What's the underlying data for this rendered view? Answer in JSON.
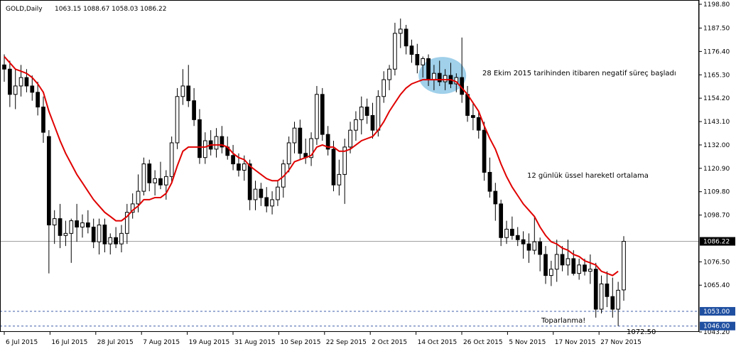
{
  "header": {
    "symbol": "GOLD,Daily",
    "ohlc": "1063.15 1088.67 1058.03 1086.22"
  },
  "chart_data": {
    "type": "candlestick",
    "symbol": "GOLD",
    "timeframe": "Daily",
    "ylim": [
      1043.2,
      1198.8
    ],
    "y_ticks": [
      "1198.80",
      "1187.50",
      "1176.40",
      "1165.30",
      "1154.20",
      "1143.10",
      "1132.00",
      "1120.90",
      "1109.80",
      "1098.70",
      "1076.50",
      "1065.40",
      "1043.20"
    ],
    "x_ticks": [
      "6 Jul 2015",
      "16 Jul 2015",
      "28 Jul 2015",
      "7 Aug 2015",
      "19 Aug 2015",
      "31 Aug 2015",
      "10 Sep 2015",
      "22 Sep 2015",
      "2 Oct 2015",
      "14 Oct 2015",
      "26 Oct 2015",
      "5 Nov 2015",
      "17 Nov 2015",
      "27 Nov 2015"
    ],
    "candles": [
      {
        "o": 1170.0,
        "h": 1175.0,
        "l": 1162.0,
        "c": 1168.0
      },
      {
        "o": 1168.0,
        "h": 1172.0,
        "l": 1150.0,
        "c": 1156.0
      },
      {
        "o": 1156.0,
        "h": 1168.0,
        "l": 1149.0,
        "c": 1160.0
      },
      {
        "o": 1160.0,
        "h": 1170.0,
        "l": 1155.0,
        "c": 1164.0
      },
      {
        "o": 1164.0,
        "h": 1168.0,
        "l": 1157.0,
        "c": 1160.0
      },
      {
        "o": 1160.0,
        "h": 1165.0,
        "l": 1153.0,
        "c": 1157.0
      },
      {
        "o": 1157.0,
        "h": 1162.0,
        "l": 1146.0,
        "c": 1150.0
      },
      {
        "o": 1150.0,
        "h": 1155.0,
        "l": 1133.0,
        "c": 1138.0
      },
      {
        "o": 1136.0,
        "h": 1139.0,
        "l": 1071.0,
        "c": 1094.0
      },
      {
        "o": 1094.0,
        "h": 1101.0,
        "l": 1085.0,
        "c": 1097.0
      },
      {
        "o": 1097.0,
        "h": 1104.0,
        "l": 1083.0,
        "c": 1089.0
      },
      {
        "o": 1089.0,
        "h": 1096.0,
        "l": 1084.0,
        "c": 1090.0
      },
      {
        "o": 1090.0,
        "h": 1097.0,
        "l": 1076.0,
        "c": 1096.0
      },
      {
        "o": 1096.0,
        "h": 1104.0,
        "l": 1086.0,
        "c": 1093.0
      },
      {
        "o": 1093.0,
        "h": 1099.0,
        "l": 1088.0,
        "c": 1095.0
      },
      {
        "o": 1095.0,
        "h": 1101.0,
        "l": 1090.0,
        "c": 1093.0
      },
      {
        "o": 1093.0,
        "h": 1097.0,
        "l": 1083.0,
        "c": 1086.0
      },
      {
        "o": 1086.0,
        "h": 1097.0,
        "l": 1080.0,
        "c": 1094.0
      },
      {
        "o": 1094.0,
        "h": 1097.0,
        "l": 1081.0,
        "c": 1085.0
      },
      {
        "o": 1085.0,
        "h": 1090.0,
        "l": 1080.0,
        "c": 1088.0
      },
      {
        "o": 1088.0,
        "h": 1093.0,
        "l": 1083.0,
        "c": 1085.0
      },
      {
        "o": 1085.0,
        "h": 1094.0,
        "l": 1081.0,
        "c": 1090.0
      },
      {
        "o": 1090.0,
        "h": 1104.0,
        "l": 1085.0,
        "c": 1100.0
      },
      {
        "o": 1100.0,
        "h": 1109.0,
        "l": 1097.0,
        "c": 1104.0
      },
      {
        "o": 1104.0,
        "h": 1118.0,
        "l": 1100.0,
        "c": 1110.0
      },
      {
        "o": 1110.0,
        "h": 1126.0,
        "l": 1108.0,
        "c": 1123.0
      },
      {
        "o": 1123.0,
        "h": 1125.0,
        "l": 1110.0,
        "c": 1114.0
      },
      {
        "o": 1114.0,
        "h": 1120.0,
        "l": 1108.0,
        "c": 1116.0
      },
      {
        "o": 1116.0,
        "h": 1124.0,
        "l": 1111.0,
        "c": 1113.0
      },
      {
        "o": 1113.0,
        "h": 1120.0,
        "l": 1106.0,
        "c": 1117.0
      },
      {
        "o": 1117.0,
        "h": 1136.0,
        "l": 1114.0,
        "c": 1133.0
      },
      {
        "o": 1133.0,
        "h": 1159.0,
        "l": 1130.0,
        "c": 1155.0
      },
      {
        "o": 1155.0,
        "h": 1168.0,
        "l": 1151.0,
        "c": 1160.0
      },
      {
        "o": 1160.0,
        "h": 1170.0,
        "l": 1150.0,
        "c": 1153.0
      },
      {
        "o": 1153.0,
        "h": 1159.0,
        "l": 1141.0,
        "c": 1144.0
      },
      {
        "o": 1144.0,
        "h": 1149.0,
        "l": 1123.0,
        "c": 1126.0
      },
      {
        "o": 1126.0,
        "h": 1138.0,
        "l": 1123.0,
        "c": 1134.0
      },
      {
        "o": 1134.0,
        "h": 1139.0,
        "l": 1127.0,
        "c": 1130.0
      },
      {
        "o": 1130.0,
        "h": 1140.0,
        "l": 1126.0,
        "c": 1136.0
      },
      {
        "o": 1136.0,
        "h": 1141.0,
        "l": 1128.0,
        "c": 1131.0
      },
      {
        "o": 1131.0,
        "h": 1136.0,
        "l": 1125.0,
        "c": 1127.0
      },
      {
        "o": 1127.0,
        "h": 1132.0,
        "l": 1120.0,
        "c": 1123.0
      },
      {
        "o": 1123.0,
        "h": 1128.0,
        "l": 1117.0,
        "c": 1120.0
      },
      {
        "o": 1120.0,
        "h": 1127.0,
        "l": 1115.0,
        "c": 1123.0
      },
      {
        "o": 1123.0,
        "h": 1125.0,
        "l": 1101.0,
        "c": 1106.0
      },
      {
        "o": 1106.0,
        "h": 1115.0,
        "l": 1101.0,
        "c": 1111.0
      },
      {
        "o": 1111.0,
        "h": 1114.0,
        "l": 1103.0,
        "c": 1107.0
      },
      {
        "o": 1107.0,
        "h": 1112.0,
        "l": 1100.0,
        "c": 1103.0
      },
      {
        "o": 1103.0,
        "h": 1110.0,
        "l": 1099.0,
        "c": 1106.0
      },
      {
        "o": 1106.0,
        "h": 1115.0,
        "l": 1103.0,
        "c": 1112.0
      },
      {
        "o": 1112.0,
        "h": 1125.0,
        "l": 1107.0,
        "c": 1123.0
      },
      {
        "o": 1123.0,
        "h": 1136.0,
        "l": 1119.0,
        "c": 1133.0
      },
      {
        "o": 1133.0,
        "h": 1143.0,
        "l": 1128.0,
        "c": 1140.0
      },
      {
        "o": 1140.0,
        "h": 1144.0,
        "l": 1125.0,
        "c": 1128.0
      },
      {
        "o": 1128.0,
        "h": 1135.0,
        "l": 1123.0,
        "c": 1126.0
      },
      {
        "o": 1126.0,
        "h": 1138.0,
        "l": 1122.0,
        "c": 1135.0
      },
      {
        "o": 1135.0,
        "h": 1160.0,
        "l": 1132.0,
        "c": 1156.0
      },
      {
        "o": 1156.0,
        "h": 1159.0,
        "l": 1134.0,
        "c": 1137.0
      },
      {
        "o": 1137.0,
        "h": 1141.0,
        "l": 1127.0,
        "c": 1130.0
      },
      {
        "o": 1130.0,
        "h": 1134.0,
        "l": 1110.0,
        "c": 1113.0
      },
      {
        "o": 1113.0,
        "h": 1125.0,
        "l": 1108.0,
        "c": 1118.0
      },
      {
        "o": 1118.0,
        "h": 1135.0,
        "l": 1104.0,
        "c": 1131.0
      },
      {
        "o": 1131.0,
        "h": 1143.0,
        "l": 1128.0,
        "c": 1139.0
      },
      {
        "o": 1139.0,
        "h": 1148.0,
        "l": 1134.0,
        "c": 1144.0
      },
      {
        "o": 1144.0,
        "h": 1155.0,
        "l": 1137.0,
        "c": 1150.0
      },
      {
        "o": 1150.0,
        "h": 1154.0,
        "l": 1142.0,
        "c": 1146.0
      },
      {
        "o": 1146.0,
        "h": 1152.0,
        "l": 1135.0,
        "c": 1139.0
      },
      {
        "o": 1139.0,
        "h": 1158.0,
        "l": 1136.0,
        "c": 1155.0
      },
      {
        "o": 1155.0,
        "h": 1167.0,
        "l": 1152.0,
        "c": 1163.0
      },
      {
        "o": 1163.0,
        "h": 1170.0,
        "l": 1158.0,
        "c": 1168.0
      },
      {
        "o": 1168.0,
        "h": 1190.0,
        "l": 1165.0,
        "c": 1185.0
      },
      {
        "o": 1185.0,
        "h": 1192.0,
        "l": 1178.0,
        "c": 1187.0
      },
      {
        "o": 1187.0,
        "h": 1189.0,
        "l": 1175.0,
        "c": 1179.0
      },
      {
        "o": 1179.0,
        "h": 1182.0,
        "l": 1171.0,
        "c": 1175.0
      },
      {
        "o": 1175.0,
        "h": 1180.0,
        "l": 1166.0,
        "c": 1170.0
      },
      {
        "o": 1170.0,
        "h": 1174.0,
        "l": 1164.0,
        "c": 1173.0
      },
      {
        "o": 1173.0,
        "h": 1175.0,
        "l": 1160.0,
        "c": 1163.0
      },
      {
        "o": 1163.0,
        "h": 1170.0,
        "l": 1158.0,
        "c": 1166.0
      },
      {
        "o": 1166.0,
        "h": 1172.0,
        "l": 1160.0,
        "c": 1162.0
      },
      {
        "o": 1162.0,
        "h": 1168.0,
        "l": 1158.0,
        "c": 1165.0
      },
      {
        "o": 1165.0,
        "h": 1171.0,
        "l": 1159.0,
        "c": 1161.0
      },
      {
        "o": 1161.0,
        "h": 1166.0,
        "l": 1157.0,
        "c": 1164.0
      },
      {
        "o": 1164.0,
        "h": 1183.0,
        "l": 1152.0,
        "c": 1156.0
      },
      {
        "o": 1156.0,
        "h": 1160.0,
        "l": 1143.0,
        "c": 1146.0
      },
      {
        "o": 1146.0,
        "h": 1152.0,
        "l": 1139.0,
        "c": 1145.0
      },
      {
        "o": 1145.0,
        "h": 1148.0,
        "l": 1135.0,
        "c": 1139.0
      },
      {
        "o": 1139.0,
        "h": 1143.0,
        "l": 1115.0,
        "c": 1119.0
      },
      {
        "o": 1119.0,
        "h": 1126.0,
        "l": 1107.0,
        "c": 1110.0
      },
      {
        "o": 1110.0,
        "h": 1114.0,
        "l": 1096.0,
        "c": 1104.0
      },
      {
        "o": 1104.0,
        "h": 1106.0,
        "l": 1084.0,
        "c": 1088.0
      },
      {
        "o": 1088.0,
        "h": 1096.0,
        "l": 1085.0,
        "c": 1092.0
      },
      {
        "o": 1092.0,
        "h": 1098.0,
        "l": 1087.0,
        "c": 1089.0
      },
      {
        "o": 1089.0,
        "h": 1093.0,
        "l": 1084.0,
        "c": 1087.0
      },
      {
        "o": 1087.0,
        "h": 1091.0,
        "l": 1078.0,
        "c": 1085.0
      },
      {
        "o": 1085.0,
        "h": 1090.0,
        "l": 1076.0,
        "c": 1082.0
      },
      {
        "o": 1082.0,
        "h": 1098.0,
        "l": 1080.0,
        "c": 1086.0
      },
      {
        "o": 1086.0,
        "h": 1088.0,
        "l": 1072.0,
        "c": 1080.0
      },
      {
        "o": 1080.0,
        "h": 1084.0,
        "l": 1066.0,
        "c": 1070.0
      },
      {
        "o": 1070.0,
        "h": 1077.0,
        "l": 1065.0,
        "c": 1073.0
      },
      {
        "o": 1073.0,
        "h": 1087.0,
        "l": 1067.0,
        "c": 1080.0
      },
      {
        "o": 1080.0,
        "h": 1084.0,
        "l": 1072.0,
        "c": 1075.0
      },
      {
        "o": 1075.0,
        "h": 1087.0,
        "l": 1070.0,
        "c": 1078.0
      },
      {
        "o": 1078.0,
        "h": 1082.0,
        "l": 1070.0,
        "c": 1071.0
      },
      {
        "o": 1071.0,
        "h": 1078.0,
        "l": 1068.0,
        "c": 1075.0
      },
      {
        "o": 1075.0,
        "h": 1078.0,
        "l": 1070.0,
        "c": 1072.0
      },
      {
        "o": 1072.0,
        "h": 1080.0,
        "l": 1066.0,
        "c": 1073.0
      },
      {
        "o": 1073.0,
        "h": 1076.0,
        "l": 1050.0,
        "c": 1054.0
      },
      {
        "o": 1054.0,
        "h": 1070.0,
        "l": 1052.0,
        "c": 1066.0
      },
      {
        "o": 1066.0,
        "h": 1072.0,
        "l": 1055.0,
        "c": 1060.0
      },
      {
        "o": 1060.0,
        "h": 1069.0,
        "l": 1050.0,
        "c": 1054.0
      },
      {
        "o": 1054.0,
        "h": 1067.0,
        "l": 1046.0,
        "c": 1063.0
      },
      {
        "o": 1063.15,
        "h": 1088.67,
        "l": 1058.03,
        "c": 1086.22
      }
    ],
    "ema12": [
      1174.0,
      1171.0,
      1168.0,
      1167.0,
      1166.0,
      1164.0,
      1161.0,
      1157.0,
      1148.0,
      1141.0,
      1134.0,
      1128.0,
      1123.0,
      1118.0,
      1114.0,
      1110.0,
      1106.0,
      1103.0,
      1100.0,
      1098.0,
      1096.0,
      1096.0,
      1098.0,
      1101.0,
      1103.0,
      1106.0,
      1106.0,
      1107.0,
      1107.0,
      1109.0,
      1114.0,
      1122.0,
      1129.0,
      1131.0,
      1131.0,
      1131.0,
      1131.0,
      1132.0,
      1132.0,
      1132.0,
      1131.0,
      1128.0,
      1126.0,
      1125.0,
      1122.0,
      1120.0,
      1118.0,
      1116.0,
      1115.0,
      1115.0,
      1117.0,
      1120.0,
      1124.0,
      1125.0,
      1126.0,
      1127.0,
      1131.0,
      1132.0,
      1131.0,
      1131.0,
      1129.0,
      1129.0,
      1130.0,
      1132.0,
      1134.0,
      1135.0,
      1136.0,
      1139.0,
      1143.0,
      1148.0,
      1152.0,
      1156.0,
      1159.0,
      1161.0,
      1162.0,
      1163.0,
      1163.0,
      1163.0,
      1163.0,
      1163.0,
      1163.0,
      1162.0,
      1159.0,
      1156.0,
      1152.0,
      1148.0,
      1141.0,
      1135.0,
      1130.0,
      1123.0,
      1117.0,
      1112.0,
      1108.0,
      1104.0,
      1101.0,
      1098.0,
      1093.0,
      1089.0,
      1086.0,
      1085.0,
      1083.0,
      1082.0,
      1080.0,
      1079.0,
      1077.0,
      1076.0,
      1075.0,
      1072.0,
      1071.0,
      1070.0,
      1072.0
    ],
    "price_lines": [
      {
        "value": 1086.22,
        "label": "1086.22",
        "style": "solid"
      },
      {
        "value": 1053.0,
        "label": "1053.00",
        "style": "dashed"
      },
      {
        "value": 1046.0,
        "label": "1046.00",
        "style": "dashed"
      }
    ],
    "highlight": {
      "from_candle": 75,
      "to_candle": 82,
      "center_value": 1165.0
    },
    "annotations": {
      "ema_note": "28 Ekim 2015 tarihinden itibaren negatif süreç başladı",
      "ema_label": "12 günlük üssel hareketl ortalama",
      "level_note": "1072.50",
      "recovery_note": "Toparlanma!"
    }
  }
}
